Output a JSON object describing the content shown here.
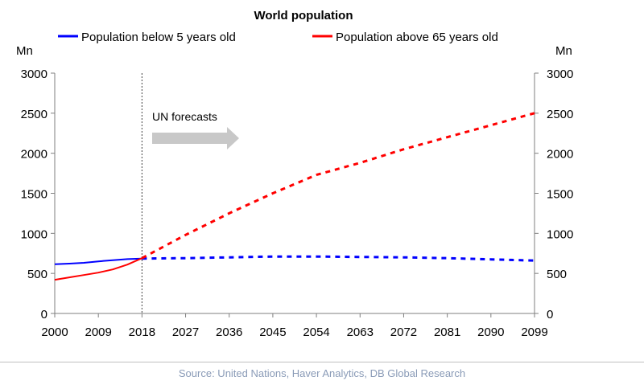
{
  "chart_data": {
    "type": "line",
    "title": "World population",
    "ylabel_left": "Mn",
    "ylabel_right": "Mn",
    "ylim": [
      0,
      3000
    ],
    "yticks": [
      0,
      500,
      1000,
      1500,
      2000,
      2500,
      3000
    ],
    "xlim": [
      2000,
      2099
    ],
    "xticks": [
      2000,
      2009,
      2018,
      2027,
      2036,
      2045,
      2054,
      2063,
      2072,
      2081,
      2090,
      2099
    ],
    "forecast_start": 2018,
    "annotation": "UN forecasts",
    "legend": [
      "Population below 5 years old",
      "Population above 65 years old"
    ],
    "series": [
      {
        "name": "Population below 5 years old",
        "color": "#0000ff",
        "historical": {
          "x": [
            2000,
            2003,
            2006,
            2009,
            2012,
            2015,
            2018
          ],
          "values": [
            615,
            622,
            632,
            650,
            665,
            678,
            685
          ]
        },
        "forecast": {
          "x": [
            2018,
            2027,
            2036,
            2045,
            2054,
            2063,
            2072,
            2081,
            2090,
            2099
          ],
          "values": [
            685,
            690,
            700,
            710,
            710,
            705,
            700,
            690,
            675,
            660
          ]
        }
      },
      {
        "name": "Population above 65 years old",
        "color": "#ff0000",
        "historical": {
          "x": [
            2000,
            2003,
            2006,
            2009,
            2012,
            2015,
            2018
          ],
          "values": [
            420,
            450,
            480,
            510,
            550,
            610,
            690
          ]
        },
        "forecast": {
          "x": [
            2018,
            2027,
            2036,
            2045,
            2054,
            2063,
            2072,
            2081,
            2090,
            2099
          ],
          "values": [
            690,
            980,
            1250,
            1500,
            1730,
            1880,
            2050,
            2200,
            2350,
            2500
          ]
        }
      }
    ]
  },
  "source": "Source: United Nations, Haver Analytics, DB Global Research"
}
